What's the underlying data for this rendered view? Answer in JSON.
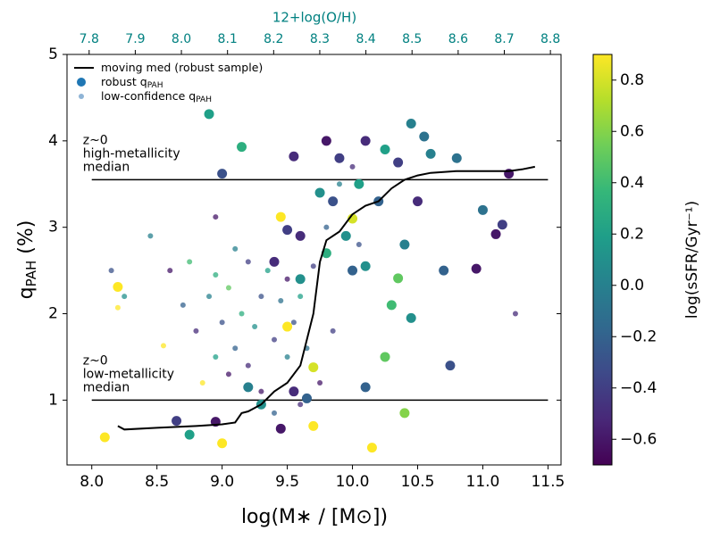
{
  "chart_data": {
    "type": "scatter",
    "xlabel": "log(M∗ / [M⊙])",
    "ylabel": {
      "main": "q",
      "sub": "PAH",
      "rest": " (%)"
    },
    "x2label": "12+log(O/H)",
    "x2color": "#008080",
    "xlim": [
      7.81,
      11.6
    ],
    "xticks": [
      {
        "value": 8.0,
        "label": "8.0"
      },
      {
        "value": 8.5,
        "label": "8.5"
      },
      {
        "value": 9.0,
        "label": "9.0"
      },
      {
        "value": 9.5,
        "label": "9.5"
      },
      {
        "value": 10.0,
        "label": "10.0"
      },
      {
        "value": 10.5,
        "label": "10.5"
      },
      {
        "value": 11.0,
        "label": "11.0"
      },
      {
        "value": 11.5,
        "label": "11.5"
      }
    ],
    "x2lim": [
      7.752,
      8.823
    ],
    "x2ticks": [
      {
        "value": 7.8,
        "label": "7.8"
      },
      7.9,
      {
        "value": 8.0,
        "label": "8.0"
      },
      8.1,
      8.2,
      8.3,
      8.4,
      8.5,
      8.6,
      8.7,
      {
        "value": 8.8,
        "label": "8.8"
      }
    ],
    "ylim": [
      0.25,
      5
    ],
    "yticks": [
      1,
      2,
      3,
      4,
      5
    ],
    "colorbar": {
      "label": "log(sSFR/Gyr⁻¹)",
      "colormap": "viridis",
      "clim": [
        -0.7,
        0.9
      ],
      "ticks": [
        {
          "value": -0.6,
          "label": "−0.6"
        },
        {
          "value": -0.4,
          "label": "−0.4"
        },
        {
          "value": -0.2,
          "label": "−0.2"
        },
        {
          "value": 0.0,
          "label": "0.0"
        },
        0.2,
        0.4,
        0.6,
        0.8
      ]
    },
    "hlines": [
      {
        "y": 3.55,
        "xmin": 8.0,
        "xmax": 11.5,
        "text": [
          "z~0",
          "high-metallicity",
          "median"
        ]
      },
      {
        "y": 1.0,
        "xmin": 8.0,
        "xmax": 11.5,
        "text": [
          "z~0",
          "low-metallicity",
          "median"
        ]
      }
    ],
    "series": [
      {
        "name": "moving med (robust sample)",
        "kind": "line",
        "color": "#000000",
        "x": [
          8.2,
          8.25,
          8.5,
          8.8,
          9.0,
          9.1,
          9.15,
          9.2,
          9.3,
          9.4,
          9.5,
          9.6,
          9.65,
          9.7,
          9.75,
          9.8,
          9.9,
          10.0,
          10.1,
          10.2,
          10.3,
          10.4,
          10.5,
          10.6,
          10.8,
          11.0,
          11.2,
          11.3,
          11.4
        ],
        "y": [
          0.7,
          0.66,
          0.68,
          0.7,
          0.72,
          0.74,
          0.85,
          0.87,
          0.95,
          1.1,
          1.2,
          1.4,
          1.7,
          2.0,
          2.6,
          2.85,
          2.95,
          3.15,
          3.25,
          3.3,
          3.45,
          3.55,
          3.6,
          3.63,
          3.65,
          3.65,
          3.65,
          3.67,
          3.7
        ]
      },
      {
        "name": "robust q",
        "sub": "PAH",
        "kind": "points",
        "marker": "large",
        "color": "#1f77b4",
        "x": [
          8.1,
          8.2,
          8.75,
          8.65,
          8.9,
          8.95,
          9.0,
          9.0,
          9.15,
          9.3,
          9.45,
          9.45,
          9.5,
          9.5,
          9.55,
          9.6,
          9.65,
          9.7,
          9.7,
          9.75,
          9.8,
          9.8,
          9.85,
          9.9,
          9.95,
          10.0,
          10.0,
          10.05,
          10.1,
          10.1,
          10.15,
          10.2,
          10.25,
          10.3,
          10.35,
          10.4,
          10.45,
          10.5,
          10.55,
          10.6,
          10.7,
          10.75,
          10.8,
          11.0,
          11.1,
          11.15,
          11.2,
          10.95,
          10.35,
          10.4,
          10.25,
          10.1,
          9.6,
          9.4,
          9.2,
          9.55,
          10.45
        ],
        "y": [
          0.57,
          2.31,
          0.6,
          0.76,
          4.31,
          0.75,
          0.5,
          3.62,
          3.93,
          0.95,
          3.12,
          0.67,
          2.97,
          1.85,
          3.82,
          2.4,
          1.02,
          1.38,
          0.7,
          3.4,
          4.0,
          2.7,
          3.3,
          3.8,
          2.9,
          3.1,
          2.5,
          3.5,
          4.0,
          2.55,
          0.45,
          3.3,
          3.9,
          2.1,
          3.75,
          0.85,
          4.2,
          3.3,
          4.05,
          3.85,
          2.5,
          1.4,
          3.8,
          3.2,
          2.92,
          3.03,
          3.62,
          2.52,
          2.41,
          2.8,
          1.5,
          1.15,
          2.9,
          2.6,
          1.15,
          1.1,
          1.95
        ],
        "c": [
          0.9,
          0.9,
          0.2,
          -0.4,
          0.2,
          -0.6,
          0.9,
          -0.3,
          0.3,
          0.1,
          0.9,
          -0.6,
          -0.4,
          0.9,
          -0.5,
          0.1,
          -0.2,
          0.8,
          0.9,
          0.1,
          -0.6,
          0.3,
          -0.3,
          -0.4,
          0.1,
          0.8,
          -0.2,
          0.2,
          -0.5,
          0.1,
          0.9,
          -0.2,
          0.2,
          0.4,
          -0.4,
          0.6,
          0.0,
          -0.5,
          -0.1,
          0.0,
          -0.2,
          -0.3,
          -0.1,
          -0.1,
          -0.6,
          -0.4,
          -0.6,
          -0.6,
          0.5,
          0.0,
          0.5,
          -0.2,
          -0.5,
          -0.5,
          0.0,
          -0.5,
          0.1
        ]
      },
      {
        "name": "low-confidence q",
        "sub": "PAH",
        "kind": "points",
        "marker": "small",
        "color": "#8fb4d6",
        "x": [
          8.15,
          8.25,
          8.55,
          8.6,
          8.7,
          8.75,
          8.8,
          8.85,
          8.9,
          8.95,
          8.95,
          9.0,
          9.05,
          9.05,
          9.1,
          9.1,
          9.15,
          9.2,
          9.2,
          9.25,
          9.3,
          9.3,
          9.35,
          9.4,
          9.4,
          9.45,
          9.5,
          9.5,
          9.55,
          9.6,
          9.6,
          9.65,
          9.7,
          9.75,
          9.8,
          9.85,
          9.9,
          10.0,
          10.05,
          11.25,
          8.2,
          8.45,
          8.95
        ],
        "y": [
          2.5,
          2.2,
          1.63,
          2.5,
          2.1,
          2.6,
          1.8,
          1.2,
          2.2,
          3.12,
          1.5,
          1.9,
          2.3,
          1.3,
          2.75,
          1.6,
          2.0,
          2.6,
          1.4,
          1.85,
          2.2,
          1.1,
          2.5,
          1.7,
          0.85,
          2.15,
          1.5,
          2.4,
          1.9,
          0.95,
          2.2,
          1.6,
          2.55,
          1.2,
          3.0,
          1.8,
          3.5,
          3.7,
          2.8,
          2.0,
          2.07,
          2.9,
          2.45
        ],
        "c": [
          -0.3,
          0.1,
          0.9,
          -0.6,
          -0.2,
          0.4,
          -0.5,
          0.9,
          0.0,
          -0.6,
          0.2,
          -0.3,
          0.5,
          -0.6,
          0.0,
          -0.2,
          0.3,
          -0.4,
          -0.5,
          0.1,
          -0.3,
          -0.6,
          0.2,
          -0.4,
          -0.2,
          -0.1,
          0.0,
          -0.6,
          -0.3,
          -0.5,
          0.2,
          -0.1,
          -0.4,
          -0.6,
          -0.2,
          -0.4,
          0.0,
          -0.5,
          -0.3,
          -0.5,
          0.9,
          0.0,
          0.3
        ]
      }
    ]
  }
}
